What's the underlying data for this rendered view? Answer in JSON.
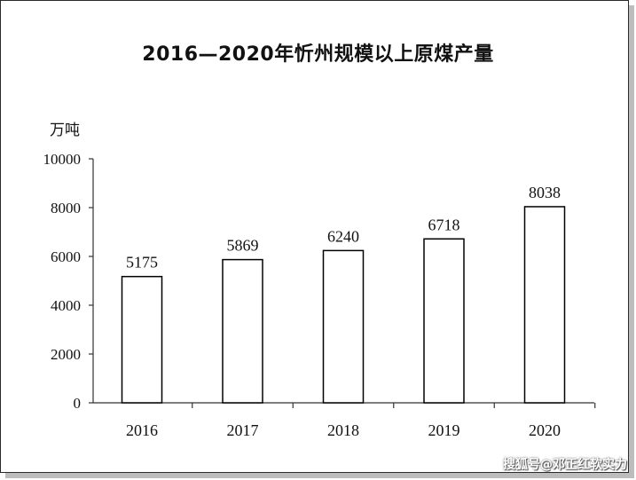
{
  "chart_data": {
    "type": "bar",
    "title": "2016—2020年忻州规模以上原煤产量",
    "unit_label": "万吨",
    "categories": [
      "2016",
      "2017",
      "2018",
      "2019",
      "2020"
    ],
    "values": [
      5175,
      5869,
      6240,
      6718,
      8038
    ],
    "ylim": [
      0,
      10000
    ],
    "yticks": [
      0,
      2000,
      4000,
      6000,
      8000,
      10000
    ],
    "xlabel": "",
    "ylabel": "",
    "grid": false,
    "bar_fill": "#ffffff",
    "bar_stroke": "#000000"
  },
  "watermark": "搜狐号@邓正红软实力"
}
